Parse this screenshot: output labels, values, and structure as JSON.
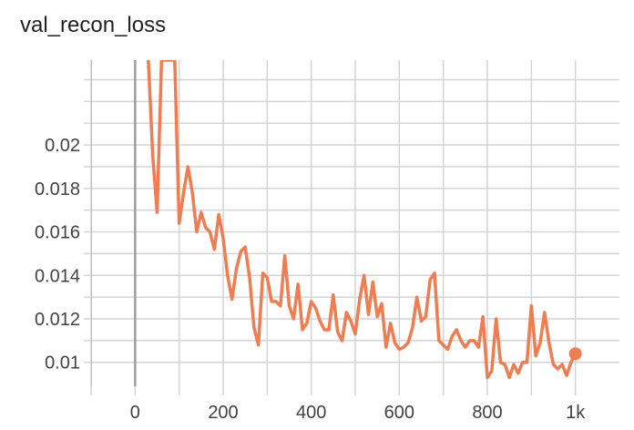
{
  "chart_data": {
    "type": "line",
    "title": "val_recon_loss",
    "xlabel": "",
    "ylabel": "",
    "xlim": [
      -100,
      1100
    ],
    "ylim": [
      0.0089,
      0.0239
    ],
    "x_ticks": [
      -100,
      0,
      200,
      400,
      600,
      800,
      1000
    ],
    "x_tick_labels": [
      "",
      "0",
      "200",
      "400",
      "600",
      "800",
      "1k"
    ],
    "x_minor_ticks": [
      100,
      300,
      500,
      700,
      900
    ],
    "y_ticks": [
      0.01,
      0.012,
      0.014,
      0.016,
      0.018,
      0.02
    ],
    "y_tick_labels": [
      "0.01",
      "0.012",
      "0.014",
      "0.016",
      "0.018",
      "0.02"
    ],
    "y_minor_ticks": [
      0.011,
      0.013,
      0.015,
      0.017,
      0.019,
      0.021,
      0.022,
      0.023
    ],
    "grid": true,
    "zero_line_x": 0,
    "series": [
      {
        "name": "",
        "color": "#f07c50",
        "marker_last": true,
        "x": [
          30,
          40,
          50,
          60,
          70,
          80,
          90,
          100,
          110,
          120,
          130,
          140,
          150,
          160,
          170,
          180,
          190,
          200,
          210,
          220,
          230,
          240,
          250,
          260,
          270,
          280,
          290,
          300,
          310,
          320,
          330,
          340,
          350,
          360,
          370,
          380,
          390,
          400,
          410,
          420,
          430,
          440,
          450,
          460,
          470,
          480,
          490,
          500,
          510,
          520,
          530,
          540,
          550,
          560,
          570,
          580,
          590,
          600,
          610,
          620,
          630,
          640,
          650,
          660,
          670,
          680,
          690,
          700,
          710,
          720,
          730,
          740,
          750,
          760,
          770,
          780,
          790,
          800,
          810,
          820,
          830,
          840,
          850,
          860,
          870,
          880,
          890,
          900,
          910,
          920,
          930,
          940,
          950,
          960,
          970,
          980,
          990,
          1000
        ],
        "y": [
          0.0239,
          0.0195,
          0.0169,
          0.0239,
          0.0239,
          0.0239,
          0.0239,
          0.0164,
          0.0178,
          0.019,
          0.0178,
          0.016,
          0.0169,
          0.0162,
          0.016,
          0.0152,
          0.0168,
          0.0157,
          0.014,
          0.0129,
          0.0143,
          0.0151,
          0.0153,
          0.0139,
          0.0116,
          0.0108,
          0.0141,
          0.0139,
          0.0128,
          0.0128,
          0.0126,
          0.0149,
          0.0126,
          0.012,
          0.0136,
          0.0115,
          0.0118,
          0.0128,
          0.0125,
          0.0119,
          0.0115,
          0.0115,
          0.0131,
          0.0114,
          0.011,
          0.0123,
          0.0119,
          0.0113,
          0.0129,
          0.014,
          0.0122,
          0.0137,
          0.0121,
          0.0127,
          0.0107,
          0.0118,
          0.0109,
          0.0106,
          0.0107,
          0.0109,
          0.0116,
          0.013,
          0.0119,
          0.0121,
          0.0138,
          0.0141,
          0.011,
          0.0108,
          0.0106,
          0.0112,
          0.0115,
          0.011,
          0.0107,
          0.011,
          0.011,
          0.0107,
          0.0121,
          0.0093,
          0.0096,
          0.012,
          0.01,
          0.0099,
          0.0093,
          0.0099,
          0.0095,
          0.01,
          0.01,
          0.0126,
          0.0103,
          0.0109,
          0.0123,
          0.0109,
          0.0099,
          0.0097,
          0.0099,
          0.0094,
          0.01,
          0.0104
        ]
      }
    ]
  }
}
